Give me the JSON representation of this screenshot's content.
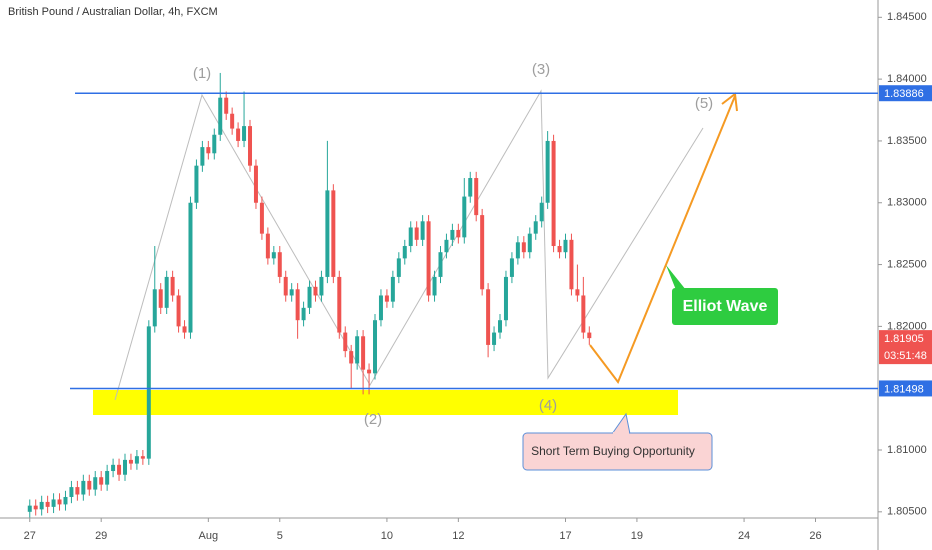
{
  "chart_data": {
    "type": "candlestick",
    "title": "British Pound / Australian Dollar, 4h, FXCM",
    "up_color": "#26a69a",
    "down_color": "#ef5350",
    "candles": [
      [
        1.805,
        1.806,
        1.8045,
        1.8055
      ],
      [
        1.8055,
        1.806,
        1.8047,
        1.8052
      ],
      [
        1.8052,
        1.8063,
        1.8047,
        1.8058
      ],
      [
        1.8058,
        1.8063,
        1.8049,
        1.8054
      ],
      [
        1.8054,
        1.8065,
        1.8049,
        1.806
      ],
      [
        1.806,
        1.8065,
        1.8051,
        1.8056
      ],
      [
        1.8056,
        1.8067,
        1.8051,
        1.8062
      ],
      [
        1.8062,
        1.8075,
        1.8057,
        1.807
      ],
      [
        1.807,
        1.8075,
        1.8059,
        1.8064
      ],
      [
        1.8064,
        1.808,
        1.8059,
        1.8075
      ],
      [
        1.8075,
        1.808,
        1.8063,
        1.8068
      ],
      [
        1.8068,
        1.8083,
        1.8063,
        1.8078
      ],
      [
        1.8078,
        1.8083,
        1.8067,
        1.8072
      ],
      [
        1.8072,
        1.8088,
        1.8067,
        1.8083
      ],
      [
        1.8083,
        1.8093,
        1.8078,
        1.8088
      ],
      [
        1.8088,
        1.8093,
        1.8075,
        1.808
      ],
      [
        1.808,
        1.8097,
        1.8075,
        1.8092
      ],
      [
        1.8092,
        1.8097,
        1.8084,
        1.8089
      ],
      [
        1.8089,
        1.81,
        1.8084,
        1.8095
      ],
      [
        1.8095,
        1.81,
        1.8088,
        1.8093
      ],
      [
        1.8093,
        1.8205,
        1.8088,
        1.82
      ],
      [
        1.82,
        1.8265,
        1.8195,
        1.823
      ],
      [
        1.823,
        1.8235,
        1.821,
        1.8215
      ],
      [
        1.8215,
        1.8245,
        1.821,
        1.824
      ],
      [
        1.824,
        1.8245,
        1.822,
        1.8225
      ],
      [
        1.8225,
        1.823,
        1.8195,
        1.82
      ],
      [
        1.82,
        1.8205,
        1.819,
        1.8195
      ],
      [
        1.8195,
        1.8305,
        1.819,
        1.83
      ],
      [
        1.83,
        1.8335,
        1.8295,
        1.833
      ],
      [
        1.833,
        1.835,
        1.8325,
        1.8345
      ],
      [
        1.8345,
        1.835,
        1.8335,
        1.834
      ],
      [
        1.834,
        1.836,
        1.8335,
        1.8355
      ],
      [
        1.8355,
        1.8405,
        1.835,
        1.8385
      ],
      [
        1.8385,
        1.839,
        1.8367,
        1.8372
      ],
      [
        1.8372,
        1.8377,
        1.8355,
        1.836
      ],
      [
        1.836,
        1.8365,
        1.8345,
        1.835
      ],
      [
        1.835,
        1.839,
        1.8345,
        1.8362
      ],
      [
        1.8362,
        1.8367,
        1.8325,
        1.833
      ],
      [
        1.833,
        1.8335,
        1.8295,
        1.83
      ],
      [
        1.83,
        1.8305,
        1.827,
        1.8275
      ],
      [
        1.8275,
        1.828,
        1.825,
        1.8255
      ],
      [
        1.8255,
        1.8265,
        1.825,
        1.826
      ],
      [
        1.826,
        1.8265,
        1.8235,
        1.824
      ],
      [
        1.824,
        1.8245,
        1.822,
        1.8225
      ],
      [
        1.8225,
        1.8235,
        1.822,
        1.823
      ],
      [
        1.823,
        1.8235,
        1.819,
        1.8205
      ],
      [
        1.8205,
        1.822,
        1.82,
        1.8215
      ],
      [
        1.8215,
        1.8237,
        1.821,
        1.8232
      ],
      [
        1.8232,
        1.8237,
        1.822,
        1.8225
      ],
      [
        1.8225,
        1.8245,
        1.822,
        1.824
      ],
      [
        1.824,
        1.835,
        1.8235,
        1.831
      ],
      [
        1.831,
        1.8315,
        1.8235,
        1.824
      ],
      [
        1.824,
        1.8245,
        1.819,
        1.8195
      ],
      [
        1.8195,
        1.82,
        1.8175,
        1.818
      ],
      [
        1.818,
        1.8185,
        1.815,
        1.817
      ],
      [
        1.817,
        1.8197,
        1.8165,
        1.8192
      ],
      [
        1.8192,
        1.8197,
        1.8145,
        1.8165
      ],
      [
        1.8165,
        1.817,
        1.8145,
        1.8162
      ],
      [
        1.8162,
        1.821,
        1.8157,
        1.8205
      ],
      [
        1.8205,
        1.823,
        1.82,
        1.8225
      ],
      [
        1.8225,
        1.823,
        1.8215,
        1.822
      ],
      [
        1.822,
        1.8245,
        1.8215,
        1.824
      ],
      [
        1.824,
        1.826,
        1.8235,
        1.8255
      ],
      [
        1.8255,
        1.827,
        1.825,
        1.8265
      ],
      [
        1.8265,
        1.8285,
        1.826,
        1.828
      ],
      [
        1.828,
        1.8285,
        1.8265,
        1.827
      ],
      [
        1.827,
        1.829,
        1.8265,
        1.8285
      ],
      [
        1.8285,
        1.829,
        1.822,
        1.8225
      ],
      [
        1.8225,
        1.8245,
        1.822,
        1.824
      ],
      [
        1.824,
        1.8265,
        1.8235,
        1.826
      ],
      [
        1.826,
        1.8275,
        1.8255,
        1.827
      ],
      [
        1.827,
        1.8283,
        1.8265,
        1.8278
      ],
      [
        1.8278,
        1.8283,
        1.8267,
        1.8272
      ],
      [
        1.8272,
        1.832,
        1.8267,
        1.8305
      ],
      [
        1.8305,
        1.8325,
        1.83,
        1.832
      ],
      [
        1.832,
        1.8325,
        1.8285,
        1.829
      ],
      [
        1.829,
        1.8295,
        1.8225,
        1.823
      ],
      [
        1.823,
        1.8235,
        1.8175,
        1.8185
      ],
      [
        1.8185,
        1.82,
        1.818,
        1.8195
      ],
      [
        1.8195,
        1.821,
        1.819,
        1.8205
      ],
      [
        1.8205,
        1.8245,
        1.82,
        1.824
      ],
      [
        1.824,
        1.826,
        1.8235,
        1.8255
      ],
      [
        1.8255,
        1.8273,
        1.825,
        1.8268
      ],
      [
        1.8268,
        1.8273,
        1.8255,
        1.826
      ],
      [
        1.826,
        1.828,
        1.8255,
        1.8275
      ],
      [
        1.8275,
        1.829,
        1.827,
        1.8285
      ],
      [
        1.8285,
        1.8305,
        1.828,
        1.83
      ],
      [
        1.83,
        1.8358,
        1.8295,
        1.835
      ],
      [
        1.835,
        1.8355,
        1.826,
        1.8265
      ],
      [
        1.8265,
        1.827,
        1.8255,
        1.826
      ],
      [
        1.826,
        1.8275,
        1.8255,
        1.827
      ],
      [
        1.827,
        1.8275,
        1.8225,
        1.823
      ],
      [
        1.823,
        1.825,
        1.822,
        1.8225
      ],
      [
        1.8225,
        1.824,
        1.819,
        1.8195
      ],
      [
        1.8195,
        1.82,
        1.8185,
        1.81905
      ]
    ],
    "xlim": [
      -5,
      142.5
    ],
    "xticks": [
      {
        "value": 0,
        "label": "27"
      },
      {
        "value": 12,
        "label": "29"
      },
      {
        "value": 30,
        "label": "Aug"
      },
      {
        "value": 42,
        "label": "5"
      },
      {
        "value": 60,
        "label": "10"
      },
      {
        "value": 72,
        "label": "12"
      },
      {
        "value": 90,
        "label": "17"
      },
      {
        "value": 102,
        "label": "19"
      },
      {
        "value": 120,
        "label": "24"
      },
      {
        "value": 132,
        "label": "26"
      }
    ],
    "ylim": [
      1.8045,
      1.8464
    ],
    "yticks": [
      {
        "value": 1.845,
        "label": "1.84500"
      },
      {
        "value": 1.84,
        "label": "1.84000"
      },
      {
        "value": 1.835,
        "label": "1.83500"
      },
      {
        "value": 1.83,
        "label": "1.83000"
      },
      {
        "value": 1.825,
        "label": "1.82500"
      },
      {
        "value": 1.82,
        "label": "1.82000"
      },
      {
        "value": 1.81,
        "label": "1.81000"
      },
      {
        "value": 1.805,
        "label": "1.80500"
      }
    ],
    "levels": [
      {
        "value": 1.83886,
        "label": "1.83886",
        "color": "#2f6fe4"
      },
      {
        "value": 1.81498,
        "label": "1.81498",
        "color": "#2f6fe4"
      }
    ],
    "last_price": {
      "value": 1.81905,
      "label": "1.81905",
      "countdown": "03:51:48",
      "color": "#ef5350"
    },
    "waves": [
      "(1)",
      "(2)",
      "(3)",
      "(4)",
      "(5)"
    ],
    "annotations": {
      "elliot": "Elliot Wave",
      "buying": "Short Term Buying Opportunity"
    }
  }
}
